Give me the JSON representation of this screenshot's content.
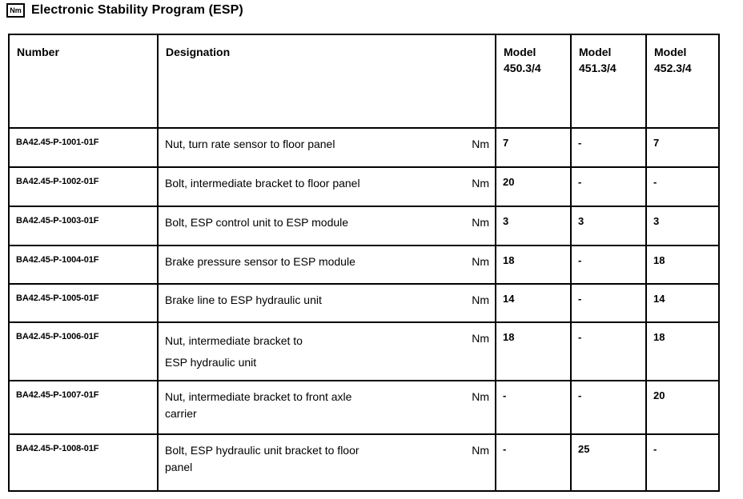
{
  "page": {
    "icon_label": "Nm",
    "title": "Electronic Stability Program (ESP)"
  },
  "table": {
    "headers": {
      "number": "Number",
      "designation": "Designation",
      "model_450": "Model\n450.3/4",
      "model_451": "Model\n451.3/4",
      "model_452": "Model\n452.3/4"
    },
    "rows": [
      {
        "number": "BA42.45-P-1001-01F",
        "designation": "Nut, turn rate sensor to floor panel",
        "unit": "Nm",
        "values": [
          "7",
          "-",
          "7"
        ]
      },
      {
        "number": "BA42.45-P-1002-01F",
        "designation": "Bolt, intermediate bracket to floor panel",
        "unit": "Nm",
        "values": [
          "20",
          "-",
          "-"
        ]
      },
      {
        "number": "BA42.45-P-1003-01F",
        "designation": "Bolt, ESP control unit to ESP module",
        "unit": "Nm",
        "values": [
          "3",
          "3",
          "3"
        ]
      },
      {
        "number": "BA42.45-P-1004-01F",
        "designation": "Brake pressure sensor to ESP module",
        "unit": "Nm",
        "values": [
          "18",
          "-",
          "18"
        ]
      },
      {
        "number": "BA42.45-P-1005-01F",
        "designation": "Brake line to ESP hydraulic unit",
        "unit": "Nm",
        "values": [
          "14",
          "-",
          "14"
        ]
      },
      {
        "number": "BA42.45-P-1006-01F",
        "designation": "Nut, intermediate bracket to\nESP hydraulic unit",
        "unit": "Nm",
        "values": [
          "18",
          "-",
          "18"
        ]
      },
      {
        "number": "BA42.45-P-1007-01F",
        "designation": "Nut, intermediate bracket to front axle\ncarrier",
        "unit": "Nm",
        "values": [
          "-",
          "-",
          "20"
        ]
      },
      {
        "number": "BA42.45-P-1008-01F",
        "designation": "Bolt, ESP hydraulic unit bracket to floor\npanel",
        "unit": "Nm",
        "values": [
          "-",
          "25",
          "-"
        ]
      }
    ]
  }
}
